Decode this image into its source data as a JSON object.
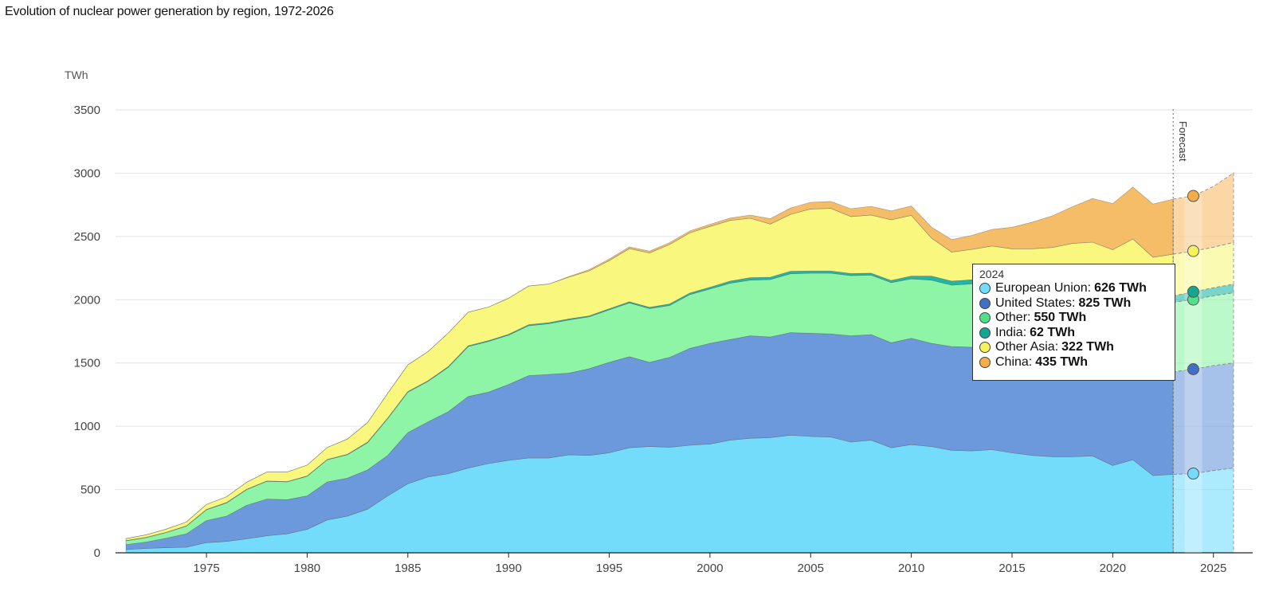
{
  "title": "Evolution of nuclear power generation by region, 1972-2026",
  "chart_data": {
    "type": "area",
    "stacked": true,
    "unit": "TWh",
    "ylim": [
      0,
      3500
    ],
    "yticks": [
      0,
      500,
      1000,
      1500,
      2000,
      2500,
      3000,
      3500
    ],
    "xticks": [
      1975,
      1980,
      1985,
      1990,
      1995,
      2000,
      2005,
      2010,
      2015,
      2020,
      2025
    ],
    "forecast_start": 2023,
    "forecast_label": "Forecast",
    "grid": true,
    "x": [
      1971,
      1972,
      1973,
      1974,
      1975,
      1976,
      1977,
      1978,
      1979,
      1980,
      1981,
      1982,
      1983,
      1984,
      1985,
      1986,
      1987,
      1988,
      1989,
      1990,
      1991,
      1992,
      1993,
      1994,
      1995,
      1996,
      1997,
      1998,
      1999,
      2000,
      2001,
      2002,
      2003,
      2004,
      2005,
      2006,
      2007,
      2008,
      2009,
      2010,
      2011,
      2012,
      2013,
      2014,
      2015,
      2016,
      2017,
      2018,
      2019,
      2020,
      2021,
      2022,
      2023,
      2024,
      2025,
      2026
    ],
    "series": [
      {
        "name": "European Union",
        "color": "#74dcfb",
        "values": [
          25,
          35,
          40,
          45,
          80,
          90,
          110,
          135,
          150,
          185,
          260,
          290,
          345,
          450,
          545,
          600,
          625,
          670,
          705,
          730,
          750,
          750,
          775,
          770,
          790,
          830,
          840,
          835,
          850,
          860,
          890,
          905,
          910,
          930,
          920,
          915,
          875,
          890,
          830,
          855,
          840,
          810,
          805,
          815,
          790,
          770,
          760,
          760,
          765,
          690,
          735,
          610,
          620,
          626,
          650,
          670
        ]
      },
      {
        "name": "United States",
        "color": "#6c99dc",
        "values": [
          40,
          50,
          75,
          105,
          175,
          200,
          265,
          290,
          270,
          265,
          300,
          300,
          310,
          320,
          405,
          435,
          490,
          565,
          565,
          600,
          650,
          660,
          645,
          685,
          715,
          720,
          665,
          710,
          765,
          795,
          795,
          810,
          795,
          810,
          815,
          815,
          840,
          835,
          830,
          840,
          815,
          820,
          820,
          830,
          830,
          830,
          830,
          830,
          815,
          805,
          800,
          805,
          810,
          825,
          830,
          830
        ]
      },
      {
        "name": "Other",
        "color": "#8ef5a7",
        "values": [
          30,
          35,
          45,
          60,
          85,
          105,
          125,
          140,
          140,
          155,
          175,
          185,
          215,
          290,
          320,
          320,
          350,
          395,
          400,
          390,
          395,
          400,
          420,
          410,
          415,
          425,
          425,
          410,
          425,
          430,
          445,
          440,
          455,
          465,
          475,
          480,
          475,
          470,
          475,
          470,
          500,
          485,
          500,
          510,
          500,
          510,
          520,
          525,
          535,
          555,
          580,
          545,
          550,
          550,
          550,
          555
        ]
      },
      {
        "name": "India",
        "color": "#1fb8a6",
        "values": [
          2,
          2,
          2,
          3,
          3,
          3,
          3,
          3,
          3,
          3,
          3,
          4,
          5,
          5,
          5,
          5,
          6,
          7,
          7,
          7,
          8,
          9,
          9,
          8,
          9,
          9,
          10,
          12,
          13,
          14,
          17,
          19,
          18,
          20,
          17,
          17,
          17,
          15,
          17,
          22,
          32,
          32,
          33,
          35,
          38,
          38,
          38,
          40,
          45,
          45,
          45,
          46,
          50,
          62,
          65,
          68
        ]
      },
      {
        "name": "Other Asia",
        "color": "#f9f77e",
        "values": [
          15,
          20,
          25,
          30,
          40,
          45,
          55,
          70,
          75,
          85,
          95,
          120,
          155,
          195,
          210,
          230,
          265,
          265,
          265,
          285,
          305,
          305,
          330,
          355,
          380,
          420,
          430,
          470,
          475,
          480,
          480,
          470,
          420,
          450,
          490,
          495,
          450,
          460,
          480,
          480,
          300,
          230,
          240,
          235,
          245,
          255,
          265,
          290,
          295,
          300,
          320,
          330,
          330,
          322,
          320,
          330
        ]
      },
      {
        "name": "China",
        "color": "#f6bd68",
        "values": [
          0,
          0,
          0,
          0,
          0,
          0,
          0,
          0,
          0,
          0,
          0,
          0,
          0,
          0,
          0,
          0,
          0,
          0,
          0,
          0,
          0,
          0,
          5,
          10,
          12,
          13,
          14,
          14,
          15,
          17,
          18,
          25,
          43,
          50,
          53,
          55,
          62,
          68,
          70,
          74,
          87,
          98,
          110,
          130,
          170,
          210,
          250,
          290,
          345,
          365,
          410,
          420,
          435,
          435,
          480,
          550
        ]
      }
    ],
    "tooltip": {
      "year": "2024",
      "rows": [
        {
          "name": "European Union",
          "value": "626 TWh",
          "color": "#74dcfb"
        },
        {
          "name": "United States",
          "value": "825 TWh",
          "color": "#3f6fc7"
        },
        {
          "name": "Other",
          "value": "550 TWh",
          "color": "#4fe08a"
        },
        {
          "name": "India",
          "value": "62 TWh",
          "color": "#13a693"
        },
        {
          "name": "Other Asia",
          "value": "322 TWh",
          "color": "#f6f25c"
        },
        {
          "name": "China",
          "value": "435 TWh",
          "color": "#f3ae4a"
        }
      ]
    }
  }
}
